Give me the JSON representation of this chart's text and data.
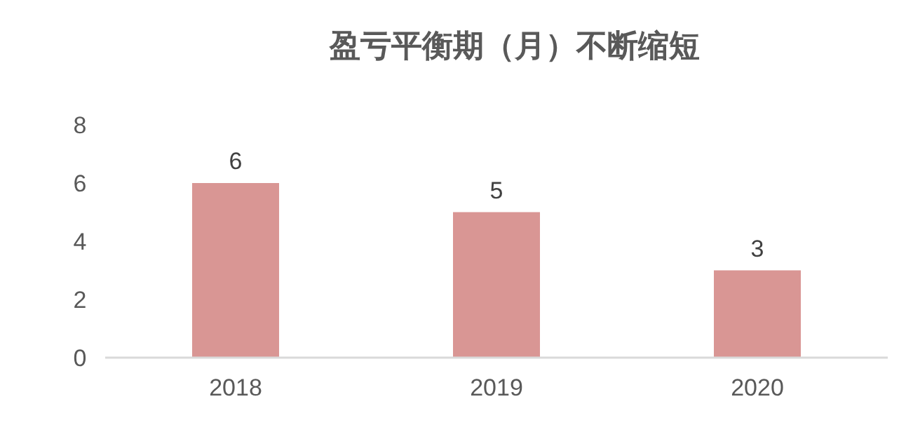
{
  "chart_data": {
    "type": "bar",
    "title": "盈亏平衡期（月）不断缩短",
    "categories": [
      "2018",
      "2019",
      "2020"
    ],
    "values": [
      6,
      5,
      3
    ],
    "color": "#d99694",
    "ylim": [
      0,
      8
    ],
    "yticks": [
      0,
      2,
      4,
      6,
      8
    ],
    "data_labels": true
  }
}
